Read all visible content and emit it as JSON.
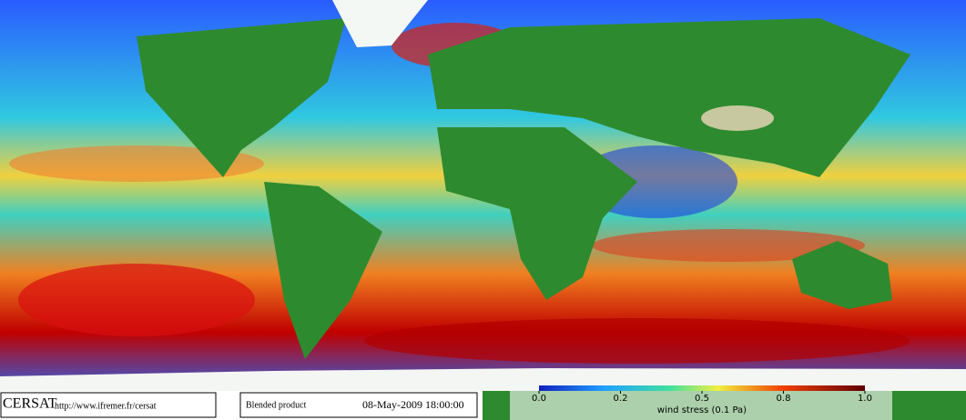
{
  "footer": {
    "logo": "CERSAT",
    "url": "http://www.ifremer.fr/cersat",
    "product": "Blended product",
    "date": "08-May-2009 18:00:00"
  },
  "colorbar": {
    "label": "wind stress (0.1 Pa)",
    "ticks": [
      {
        "value": 0,
        "label": "0.0"
      },
      0.2,
      0.5,
      0.8,
      {
        "value": 1,
        "label": "1.0"
      }
    ]
  }
}
